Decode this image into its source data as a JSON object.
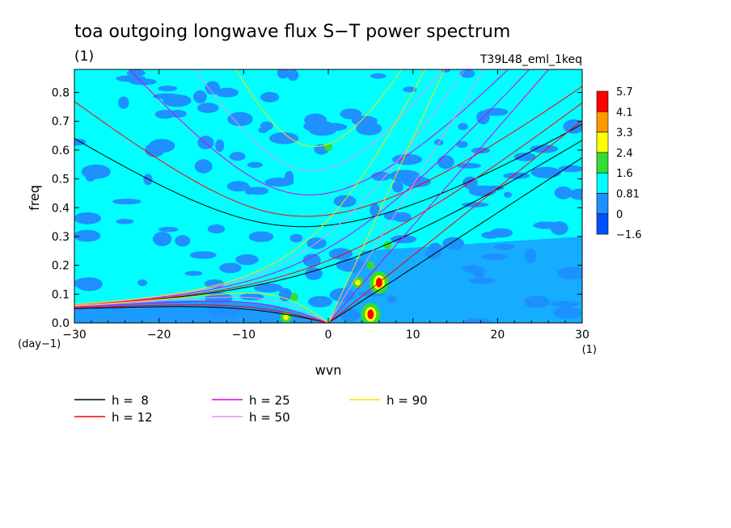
{
  "chart_data": {
    "type": "heatmap",
    "title": "toa outgoing longwave flux S−T power spectrum",
    "title_unit": "(1)",
    "subtitle_right": "T39L48_eml_1keq",
    "xlabel": "wvn",
    "ylabel": "freq",
    "x_unit": "(1)",
    "y_unit": "(day−1)",
    "xlim": [
      -30,
      30
    ],
    "ylim": [
      0,
      0.88
    ],
    "xticks": [
      -30,
      -20,
      -10,
      0,
      10,
      20,
      30
    ],
    "xtick_labels": [
      "−30",
      "−20",
      "−10",
      "0",
      "10",
      "20",
      "30"
    ],
    "yticks": [
      0,
      0.1,
      0.2,
      0.3,
      0.4,
      0.5,
      0.6,
      0.7,
      0.8
    ],
    "ytick_labels": [
      "0.0",
      "0.1",
      "0.2",
      "0.3",
      "0.4",
      "0.5",
      "0.6",
      "0.7",
      "0.8"
    ],
    "colorbar": {
      "labels": [
        "5.7",
        "4.1",
        "3.3",
        "2.4",
        "1.6",
        "0.81",
        "0",
        "−1.6"
      ],
      "colors": [
        "#ff0000",
        "#ff9900",
        "#ffff00",
        "#33dd33",
        "#00ffff",
        "#1e90ff",
        "#0050ff"
      ]
    },
    "background_levels": {
      "base_color": "#00ffff",
      "low_color": "#1e90ff",
      "mid_color": "#33dd33",
      "high_color": "#ffff00",
      "peak_color": "#ff0000"
    },
    "hotspots": [
      {
        "x": 5,
        "y": 0.03,
        "level": "peak"
      },
      {
        "x": 6,
        "y": 0.14,
        "level": "peak"
      },
      {
        "x": 3.5,
        "y": 0.14,
        "level": "high"
      },
      {
        "x": 5,
        "y": 0.2,
        "level": "mid"
      },
      {
        "x": -5,
        "y": 0.02,
        "level": "high"
      },
      {
        "x": 0,
        "y": 0.61,
        "level": "mid"
      },
      {
        "x": 7,
        "y": 0.27,
        "level": "mid"
      },
      {
        "x": -4,
        "y": 0.09,
        "level": "mid"
      }
    ],
    "series": [
      {
        "name": "h =  8",
        "h": 8,
        "color": "#000000"
      },
      {
        "name": "h = 12",
        "h": 12,
        "color": "#ff0000"
      },
      {
        "name": "h = 25",
        "h": 25,
        "color": "#dd00dd"
      },
      {
        "name": "h = 50",
        "h": 50,
        "color": "#ee90ee"
      },
      {
        "name": "h = 90",
        "h": 90,
        "color": "#ffdd00"
      }
    ]
  }
}
